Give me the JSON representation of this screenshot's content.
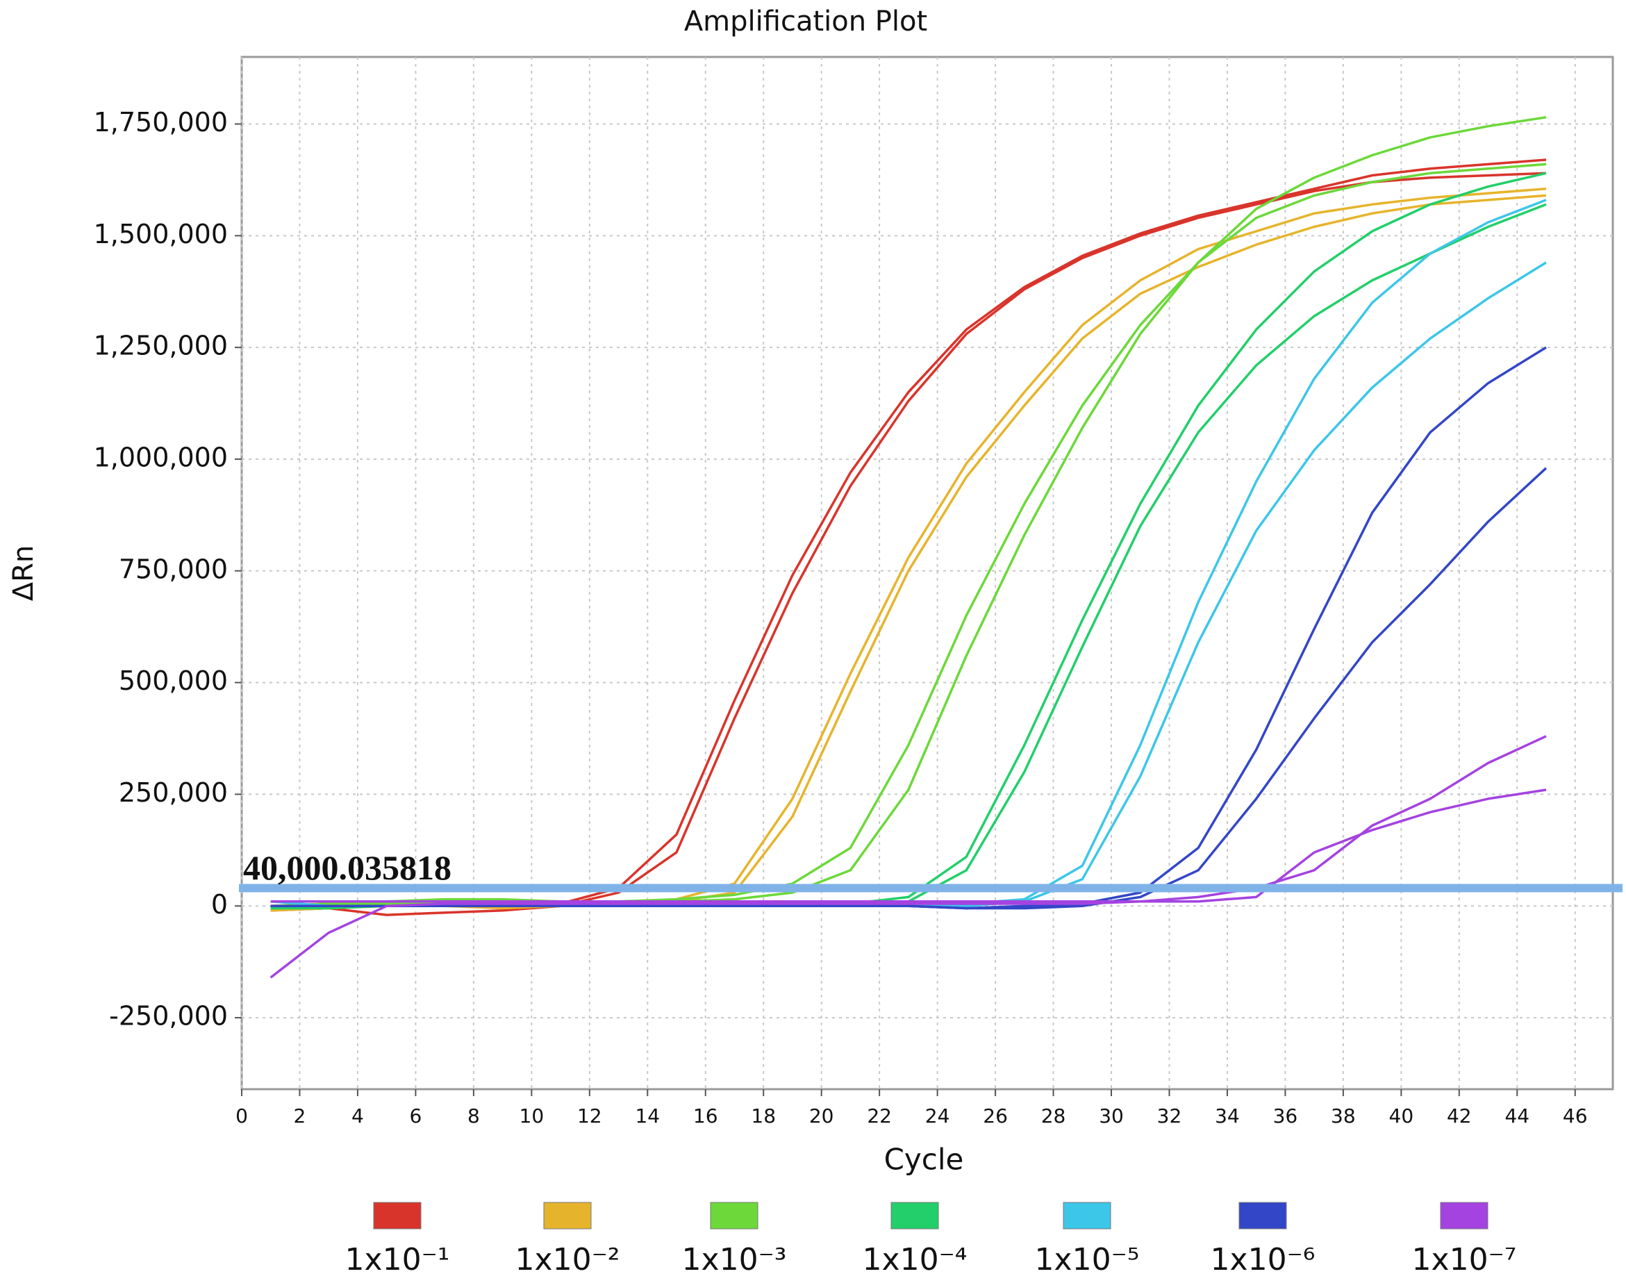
{
  "chart_data": {
    "type": "line",
    "title": "Amplification Plot",
    "x_label": "Cycle",
    "y_label": "ΔRn",
    "x": [
      1,
      3,
      5,
      7,
      9,
      11,
      13,
      15,
      17,
      19,
      21,
      23,
      25,
      27,
      29,
      31,
      33,
      35,
      37,
      39,
      41,
      43,
      45
    ],
    "xlim": [
      0,
      47.3
    ],
    "xticks": [
      0,
      2,
      4,
      6,
      8,
      10,
      12,
      14,
      16,
      18,
      20,
      22,
      24,
      26,
      28,
      30,
      32,
      34,
      36,
      38,
      40,
      42,
      44,
      46
    ],
    "ylim": [
      -410000,
      1900000
    ],
    "yticks": [
      {
        "value": -250000,
        "label": "-250,000"
      },
      0,
      {
        "value": 250000,
        "label": "250,000"
      },
      {
        "value": 500000,
        "label": "500,000"
      },
      {
        "value": 750000,
        "label": "750,000"
      },
      {
        "value": 1000000,
        "label": "1,000,000"
      },
      {
        "value": 1250000,
        "label": "1,250,000"
      },
      {
        "value": 1500000,
        "label": "1,500,000"
      },
      {
        "value": 1750000,
        "label": "1,750,000"
      }
    ],
    "grid": true,
    "threshold": {
      "value": 40000.035818,
      "label": "40,000.035818",
      "color": "#7fb3e8"
    },
    "series": [
      {
        "name": "1x10⁻¹",
        "color": "#d9342b",
        "values": [
          [
            -10000,
            -5000,
            -20000,
            -15000,
            -10000,
            0,
            30000,
            120000,
            420000,
            700000,
            940000,
            1130000,
            1280000,
            1380000,
            1450000,
            1500000,
            1540000,
            1570000,
            1600000,
            1620000,
            1630000,
            1635000,
            1640000
          ],
          [
            0,
            5000,
            10000,
            5000,
            0,
            5000,
            40000,
            160000,
            460000,
            740000,
            970000,
            1150000,
            1290000,
            1385000,
            1455000,
            1505000,
            1545000,
            1575000,
            1605000,
            1635000,
            1650000,
            1660000,
            1670000
          ]
        ]
      },
      {
        "name": "1x10⁻²",
        "color": "#e6b42c",
        "values": [
          [
            -10000,
            -5000,
            0,
            0,
            -5000,
            0,
            5000,
            10000,
            30000,
            200000,
            480000,
            750000,
            960000,
            1120000,
            1270000,
            1370000,
            1430000,
            1480000,
            1520000,
            1550000,
            1570000,
            1580000,
            1590000
          ],
          [
            -5000,
            0,
            5000,
            5000,
            0,
            5000,
            5000,
            15000,
            50000,
            240000,
            520000,
            780000,
            990000,
            1150000,
            1300000,
            1400000,
            1470000,
            1510000,
            1550000,
            1570000,
            1585000,
            1595000,
            1605000
          ]
        ]
      },
      {
        "name": "1x10⁻³",
        "color": "#6cd83a",
        "values": [
          [
            0,
            5000,
            10000,
            15000,
            15000,
            10000,
            10000,
            10000,
            15000,
            30000,
            80000,
            260000,
            560000,
            830000,
            1070000,
            1280000,
            1440000,
            1560000,
            1630000,
            1680000,
            1720000,
            1745000,
            1765000
          ],
          [
            -5000,
            0,
            5000,
            10000,
            10000,
            10000,
            10000,
            15000,
            25000,
            50000,
            130000,
            360000,
            650000,
            900000,
            1120000,
            1300000,
            1440000,
            1540000,
            1590000,
            1620000,
            1640000,
            1650000,
            1660000
          ]
        ]
      },
      {
        "name": "1x10⁻⁴",
        "color": "#22cf6a",
        "values": [
          [
            -5000,
            -5000,
            0,
            0,
            0,
            0,
            0,
            0,
            0,
            0,
            0,
            10000,
            80000,
            300000,
            580000,
            850000,
            1060000,
            1210000,
            1320000,
            1400000,
            1460000,
            1520000,
            1570000
          ],
          [
            0,
            0,
            0,
            0,
            0,
            0,
            0,
            0,
            0,
            0,
            5000,
            20000,
            110000,
            360000,
            640000,
            900000,
            1120000,
            1290000,
            1420000,
            1510000,
            1570000,
            1610000,
            1640000
          ]
        ]
      },
      {
        "name": "1x10⁻⁵",
        "color": "#3cc6e8",
        "values": [
          [
            10000,
            0,
            0,
            0,
            0,
            0,
            0,
            0,
            0,
            0,
            0,
            0,
            0,
            10000,
            60000,
            290000,
            590000,
            840000,
            1020000,
            1160000,
            1270000,
            1360000,
            1440000
          ],
          [
            0,
            0,
            0,
            0,
            0,
            0,
            0,
            0,
            0,
            0,
            0,
            0,
            5000,
            15000,
            90000,
            360000,
            680000,
            950000,
            1180000,
            1350000,
            1460000,
            1530000,
            1580000
          ]
        ]
      },
      {
        "name": "1x10⁻⁶",
        "color": "#3346c8",
        "values": [
          [
            0,
            0,
            0,
            0,
            0,
            0,
            0,
            0,
            0,
            0,
            0,
            0,
            -5000,
            -5000,
            0,
            20000,
            80000,
            240000,
            420000,
            590000,
            720000,
            860000,
            980000
          ],
          [
            0,
            0,
            0,
            0,
            0,
            0,
            0,
            0,
            0,
            0,
            0,
            0,
            -5000,
            0,
            5000,
            30000,
            130000,
            350000,
            620000,
            880000,
            1060000,
            1170000,
            1250000
          ]
        ]
      },
      {
        "name": "1x10⁻⁷",
        "color": "#a443e0",
        "values": [
          [
            -160000,
            -60000,
            0,
            5000,
            5000,
            5000,
            5000,
            5000,
            5000,
            5000,
            5000,
            5000,
            5000,
            5000,
            5000,
            10000,
            20000,
            40000,
            80000,
            180000,
            240000,
            320000,
            380000
          ],
          [
            10000,
            10000,
            10000,
            10000,
            10000,
            10000,
            10000,
            10000,
            10000,
            10000,
            10000,
            10000,
            10000,
            10000,
            10000,
            10000,
            10000,
            20000,
            120000,
            170000,
            210000,
            240000,
            260000
          ]
        ]
      }
    ]
  }
}
